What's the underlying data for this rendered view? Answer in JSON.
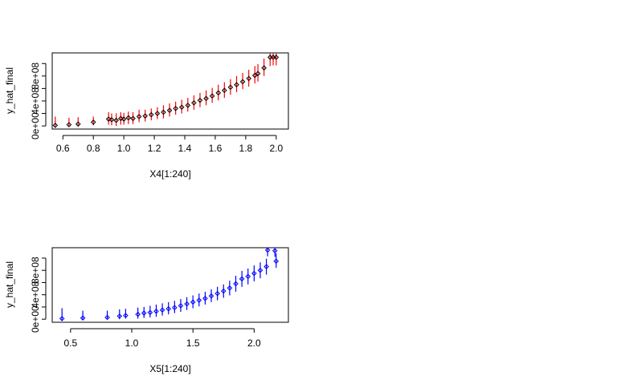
{
  "chart_data": [
    {
      "type": "scatter",
      "title": "",
      "xlabel": "X4[1:240]",
      "ylabel": "y_hat_final",
      "xlim": [
        0.53,
        2.08
      ],
      "ylim": [
        -50000000.0,
        1170000000.0
      ],
      "x_ticks": [
        0.6,
        0.8,
        1.0,
        1.2,
        1.4,
        1.6,
        1.8,
        2.0
      ],
      "x_tick_labels": [
        "0.6",
        "0.8",
        "1.0",
        "1.2",
        "1.4",
        "1.6",
        "1.8",
        "2.0"
      ],
      "y_ticks": [
        0,
        400000000,
        800000000
      ],
      "y_tick_labels": [
        "0e+00",
        "4e+08",
        "8e+08"
      ],
      "y_minor_ticks": [
        200000000,
        600000000,
        1000000000
      ],
      "error_bar_color": "#ff0000",
      "point_color": "#000000",
      "grid": false,
      "points": [
        {
          "x": 0.55,
          "y": 10000000.0,
          "lo": -30000000.0,
          "hi": 150000000.0
        },
        {
          "x": 0.64,
          "y": 20000000.0,
          "lo": -10000000.0,
          "hi": 130000000.0
        },
        {
          "x": 0.7,
          "y": 30000000.0,
          "lo": 0,
          "hi": 140000000.0
        },
        {
          "x": 0.8,
          "y": 60000000.0,
          "lo": 10000000.0,
          "hi": 150000000.0
        },
        {
          "x": 0.9,
          "y": 110000000.0,
          "lo": 20000000.0,
          "hi": 220000000.0
        },
        {
          "x": 0.92,
          "y": 100000000.0,
          "lo": 10000000.0,
          "hi": 200000000.0
        },
        {
          "x": 0.95,
          "y": 90000000.0,
          "lo": 0,
          "hi": 200000000.0
        },
        {
          "x": 0.98,
          "y": 120000000.0,
          "lo": 20000000.0,
          "hi": 220000000.0
        },
        {
          "x": 1.0,
          "y": 110000000.0,
          "lo": 20000000.0,
          "hi": 210000000.0
        },
        {
          "x": 1.03,
          "y": 130000000.0,
          "lo": 30000000.0,
          "hi": 230000000.0
        },
        {
          "x": 1.06,
          "y": 120000000.0,
          "lo": 30000000.0,
          "hi": 220000000.0
        },
        {
          "x": 1.1,
          "y": 150000000.0,
          "lo": 60000000.0,
          "hi": 260000000.0
        },
        {
          "x": 1.14,
          "y": 160000000.0,
          "lo": 70000000.0,
          "hi": 260000000.0
        },
        {
          "x": 1.18,
          "y": 180000000.0,
          "lo": 90000000.0,
          "hi": 280000000.0
        },
        {
          "x": 1.22,
          "y": 200000000.0,
          "lo": 110000000.0,
          "hi": 300000000.0
        },
        {
          "x": 1.26,
          "y": 220000000.0,
          "lo": 120000000.0,
          "hi": 330000000.0
        },
        {
          "x": 1.3,
          "y": 250000000.0,
          "lo": 150000000.0,
          "hi": 360000000.0
        },
        {
          "x": 1.34,
          "y": 280000000.0,
          "lo": 180000000.0,
          "hi": 390000000.0
        },
        {
          "x": 1.38,
          "y": 300000000.0,
          "lo": 200000000.0,
          "hi": 420000000.0
        },
        {
          "x": 1.42,
          "y": 330000000.0,
          "lo": 230000000.0,
          "hi": 450000000.0
        },
        {
          "x": 1.46,
          "y": 370000000.0,
          "lo": 260000000.0,
          "hi": 490000000.0
        },
        {
          "x": 1.5,
          "y": 410000000.0,
          "lo": 300000000.0,
          "hi": 530000000.0
        },
        {
          "x": 1.54,
          "y": 440000000.0,
          "lo": 330000000.0,
          "hi": 570000000.0
        },
        {
          "x": 1.58,
          "y": 480000000.0,
          "lo": 370000000.0,
          "hi": 610000000.0
        },
        {
          "x": 1.62,
          "y": 530000000.0,
          "lo": 410000000.0,
          "hi": 660000000.0
        },
        {
          "x": 1.66,
          "y": 570000000.0,
          "lo": 450000000.0,
          "hi": 700000000.0
        },
        {
          "x": 1.7,
          "y": 620000000.0,
          "lo": 500000000.0,
          "hi": 750000000.0
        },
        {
          "x": 1.74,
          "y": 660000000.0,
          "lo": 540000000.0,
          "hi": 800000000.0
        },
        {
          "x": 1.78,
          "y": 710000000.0,
          "lo": 590000000.0,
          "hi": 850000000.0
        },
        {
          "x": 1.82,
          "y": 760000000.0,
          "lo": 630000000.0,
          "hi": 900000000.0
        },
        {
          "x": 1.86,
          "y": 810000000.0,
          "lo": 680000000.0,
          "hi": 960000000.0
        },
        {
          "x": 1.88,
          "y": 840000000.0,
          "lo": 710000000.0,
          "hi": 990000000.0
        },
        {
          "x": 1.92,
          "y": 930000000.0,
          "lo": 800000000.0,
          "hi": 1080000000.0
        },
        {
          "x": 1.96,
          "y": 1100000000.0,
          "lo": 960000000.0,
          "hi": 1160000000.0
        },
        {
          "x": 1.98,
          "y": 1100000000.0,
          "lo": 970000000.0,
          "hi": 1160000000.0
        },
        {
          "x": 2.0,
          "y": 1100000000.0,
          "lo": 970000000.0,
          "hi": 1160000000.0
        }
      ]
    },
    {
      "type": "scatter",
      "title": "",
      "xlabel": "X5[1:240]",
      "ylabel": "y_hat_final",
      "xlim": [
        0.35,
        2.28
      ],
      "ylim": [
        -50000000.0,
        1170000000.0
      ],
      "x_ticks": [
        0.5,
        1.0,
        1.5,
        2.0
      ],
      "x_tick_labels": [
        "0.5",
        "1.0",
        "1.5",
        "2.0"
      ],
      "y_ticks": [
        0,
        400000000,
        800000000
      ],
      "y_tick_labels": [
        "0e+00",
        "4e+08",
        "8e+08"
      ],
      "y_minor_ticks": [
        200000000,
        600000000,
        1000000000
      ],
      "error_bar_color": "#0000ff",
      "point_color": "#0000ff",
      "grid": false,
      "points": [
        {
          "x": 0.43,
          "y": 10000000.0,
          "lo": -30000000.0,
          "hi": 180000000.0
        },
        {
          "x": 0.6,
          "y": 20000000.0,
          "lo": -10000000.0,
          "hi": 140000000.0
        },
        {
          "x": 0.8,
          "y": 30000000.0,
          "lo": 0,
          "hi": 140000000.0
        },
        {
          "x": 0.9,
          "y": 50000000.0,
          "lo": 0,
          "hi": 160000000.0
        },
        {
          "x": 0.95,
          "y": 60000000.0,
          "lo": 10000000.0,
          "hi": 170000000.0
        },
        {
          "x": 1.05,
          "y": 80000000.0,
          "lo": 10000000.0,
          "hi": 190000000.0
        },
        {
          "x": 1.1,
          "y": 100000000.0,
          "lo": 20000000.0,
          "hi": 200000000.0
        },
        {
          "x": 1.15,
          "y": 110000000.0,
          "lo": 30000000.0,
          "hi": 220000000.0
        },
        {
          "x": 1.2,
          "y": 130000000.0,
          "lo": 40000000.0,
          "hi": 240000000.0
        },
        {
          "x": 1.25,
          "y": 150000000.0,
          "lo": 60000000.0,
          "hi": 260000000.0
        },
        {
          "x": 1.3,
          "y": 170000000.0,
          "lo": 80000000.0,
          "hi": 280000000.0
        },
        {
          "x": 1.35,
          "y": 190000000.0,
          "lo": 100000000.0,
          "hi": 300000000.0
        },
        {
          "x": 1.4,
          "y": 220000000.0,
          "lo": 120000000.0,
          "hi": 330000000.0
        },
        {
          "x": 1.45,
          "y": 250000000.0,
          "lo": 150000000.0,
          "hi": 360000000.0
        },
        {
          "x": 1.5,
          "y": 280000000.0,
          "lo": 180000000.0,
          "hi": 390000000.0
        },
        {
          "x": 1.55,
          "y": 310000000.0,
          "lo": 210000000.0,
          "hi": 420000000.0
        },
        {
          "x": 1.6,
          "y": 340000000.0,
          "lo": 240000000.0,
          "hi": 450000000.0
        },
        {
          "x": 1.65,
          "y": 380000000.0,
          "lo": 280000000.0,
          "hi": 490000000.0
        },
        {
          "x": 1.7,
          "y": 420000000.0,
          "lo": 310000000.0,
          "hi": 530000000.0
        },
        {
          "x": 1.75,
          "y": 460000000.0,
          "lo": 350000000.0,
          "hi": 570000000.0
        },
        {
          "x": 1.8,
          "y": 510000000.0,
          "lo": 390000000.0,
          "hi": 630000000.0
        },
        {
          "x": 1.85,
          "y": 580000000.0,
          "lo": 450000000.0,
          "hi": 710000000.0
        },
        {
          "x": 1.9,
          "y": 660000000.0,
          "lo": 530000000.0,
          "hi": 790000000.0
        },
        {
          "x": 1.95,
          "y": 700000000.0,
          "lo": 570000000.0,
          "hi": 830000000.0
        },
        {
          "x": 2.0,
          "y": 750000000.0,
          "lo": 620000000.0,
          "hi": 880000000.0
        },
        {
          "x": 2.05,
          "y": 800000000.0,
          "lo": 670000000.0,
          "hi": 930000000.0
        },
        {
          "x": 2.1,
          "y": 860000000.0,
          "lo": 730000000.0,
          "hi": 990000000.0
        },
        {
          "x": 2.11,
          "y": 1130000000.0,
          "lo": 1030000000.0,
          "hi": 1160000000.0
        },
        {
          "x": 2.17,
          "y": 1120000000.0,
          "lo": 1020000000.0,
          "hi": 1160000000.0
        },
        {
          "x": 2.18,
          "y": 950000000.0,
          "lo": 840000000.0,
          "hi": 1080000000.0
        }
      ]
    }
  ]
}
